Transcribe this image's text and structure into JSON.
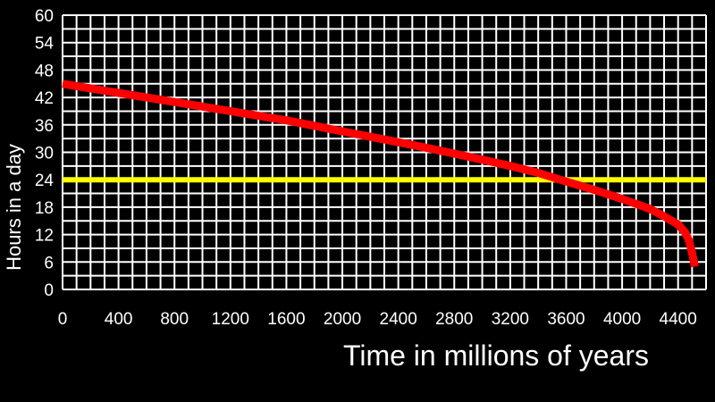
{
  "chart_data": {
    "type": "line",
    "title": "",
    "xlabel": "Time in millions of years",
    "ylabel": "Hours in a day",
    "xlim": [
      0,
      4600
    ],
    "ylim": [
      0,
      60
    ],
    "grid": true,
    "x_ticks": [
      "0",
      "400",
      "800",
      "1200",
      "1600",
      "2000",
      "2400",
      "2800",
      "3200",
      "3600",
      "4000",
      "4400"
    ],
    "y_ticks": [
      "0",
      "6",
      "12",
      "18",
      "24",
      "30",
      "36",
      "42",
      "48",
      "54",
      "60"
    ],
    "reference_line": {
      "y": 24,
      "color": "#ffff00"
    },
    "series": [
      {
        "color": "#ff0000",
        "points": [
          [
            0,
            45
          ],
          [
            200,
            44
          ],
          [
            400,
            43
          ],
          [
            600,
            42
          ],
          [
            800,
            41
          ],
          [
            1000,
            40
          ],
          [
            1200,
            39
          ],
          [
            1400,
            38
          ],
          [
            1600,
            37
          ],
          [
            1800,
            35.8
          ],
          [
            2000,
            34.6
          ],
          [
            2200,
            33.4
          ],
          [
            2400,
            32.2
          ],
          [
            2600,
            31
          ],
          [
            2800,
            29.7
          ],
          [
            3000,
            28.4
          ],
          [
            3200,
            27
          ],
          [
            3400,
            25.5
          ],
          [
            3600,
            23.6
          ],
          [
            3800,
            21.8
          ],
          [
            4000,
            19.8
          ],
          [
            4200,
            17.6
          ],
          [
            4300,
            16
          ],
          [
            4400,
            14.2
          ],
          [
            4450,
            12.5
          ],
          [
            4480,
            10.5
          ],
          [
            4500,
            8
          ],
          [
            4520,
            5
          ]
        ]
      }
    ]
  }
}
